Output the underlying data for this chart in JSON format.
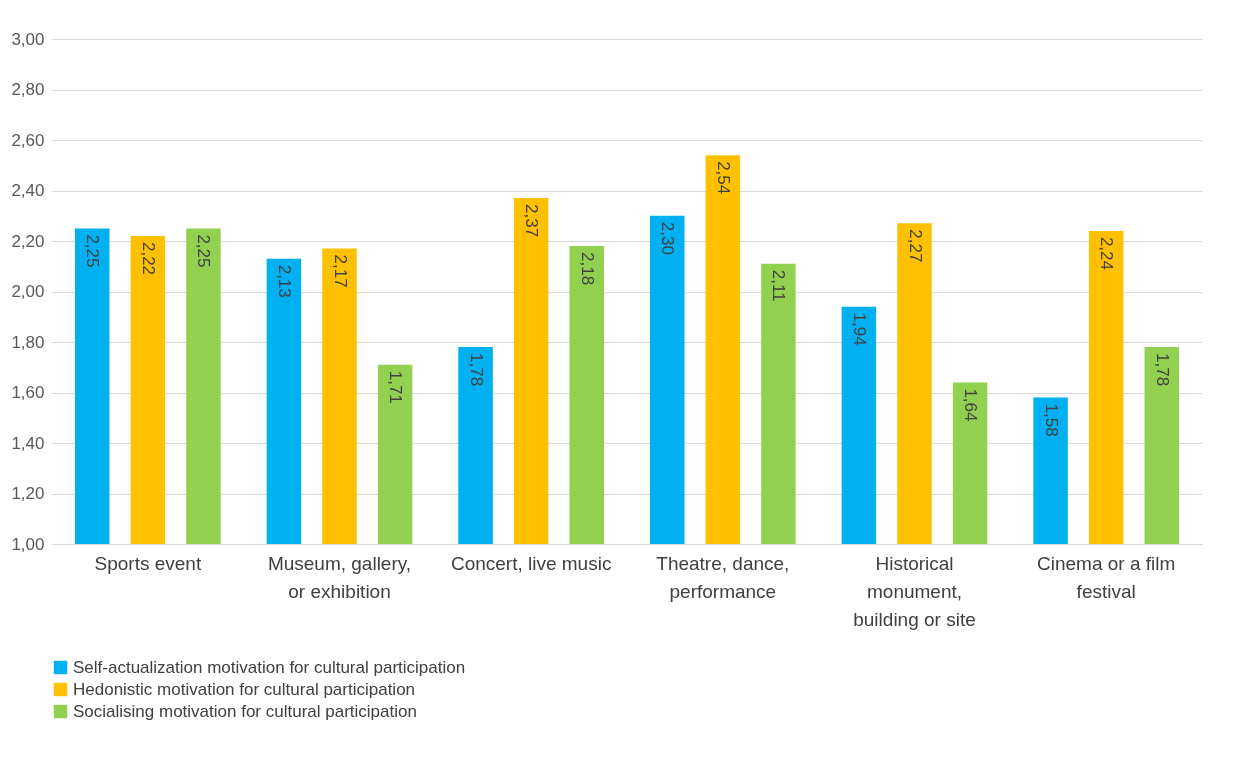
{
  "chart_data": {
    "type": "bar",
    "categories": [
      "Sports event",
      "Museum, gallery, or exhibition",
      "Concert, live music",
      "Theatre, dance, performance",
      "Historical monument, building or site",
      "Cinema or a film festival"
    ],
    "series": [
      {
        "name": "Self-actualization motivation for cultural participation",
        "color": "#00b0f0",
        "values": [
          2.25,
          2.13,
          1.78,
          2.3,
          1.94,
          1.58
        ],
        "value_labels": [
          "2,25",
          "2,13",
          "1,78",
          "2,30",
          "1,94",
          "1,58"
        ]
      },
      {
        "name": "Hedonistic motivation for cultural participation",
        "color": "#ffc000",
        "values": [
          2.22,
          2.17,
          2.37,
          2.54,
          2.27,
          2.24
        ],
        "value_labels": [
          "2,22",
          "2,17",
          "2,37",
          "2,54",
          "2,27",
          "2,24"
        ]
      },
      {
        "name": "Socialising motivation for cultural participation",
        "color": "#92d050",
        "values": [
          2.25,
          1.71,
          2.18,
          2.11,
          1.64,
          1.78
        ],
        "value_labels": [
          "2,25",
          "1,71",
          "2,18",
          "2,11",
          "1,64",
          "1,78"
        ]
      }
    ],
    "ylim": [
      1.0,
      3.0
    ],
    "yticks": [
      {
        "value": 1.0,
        "label": "1,00"
      },
      {
        "value": 1.2,
        "label": "1,20"
      },
      {
        "value": 1.4,
        "label": "1,40"
      },
      {
        "value": 1.6,
        "label": "1,60"
      },
      {
        "value": 1.8,
        "label": "1,80"
      },
      {
        "value": 2.0,
        "label": "2,00"
      },
      {
        "value": 2.2,
        "label": "2,20"
      },
      {
        "value": 2.4,
        "label": "2,40"
      },
      {
        "value": 2.6,
        "label": "2,60"
      },
      {
        "value": 2.8,
        "label": "2,80"
      },
      {
        "value": 3.0,
        "label": "3,00"
      }
    ],
    "grid": "y",
    "legend": "bottom"
  }
}
